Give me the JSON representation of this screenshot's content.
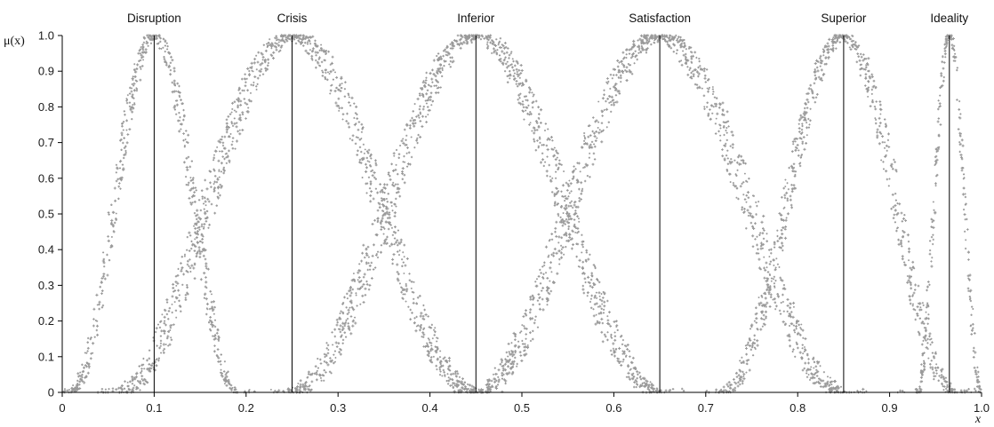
{
  "chart_data": {
    "type": "line",
    "title": "",
    "xlabel": "x",
    "ylabel": "μ(x)",
    "xlim": [
      0,
      1
    ],
    "ylim": [
      0,
      1
    ],
    "x_ticks": [
      "0",
      "0.1",
      "0.2",
      "0.3",
      "0.4",
      "0.5",
      "0.6",
      "0.7",
      "0.8",
      "0.9",
      "1.0"
    ],
    "y_ticks": [
      "0",
      "0.1",
      "0.2",
      "0.3",
      "0.4",
      "0.5",
      "0.6",
      "0.7",
      "0.8",
      "0.9",
      "1.0"
    ],
    "grid": false,
    "legend": "none",
    "marker_color": "#9a9a9a",
    "line_color": "#000000",
    "series": [
      {
        "name": "Disruption",
        "center": 0.1,
        "left_support": 0.01,
        "right_support": 0.19
      },
      {
        "name": "Crisis",
        "center": 0.25,
        "left_support": 0.06,
        "right_support": 0.45
      },
      {
        "name": "Inferior",
        "center": 0.45,
        "left_support": 0.25,
        "right_support": 0.65
      },
      {
        "name": "Satisfaction",
        "center": 0.65,
        "left_support": 0.45,
        "right_support": 0.85
      },
      {
        "name": "Superior",
        "center": 0.85,
        "left_support": 0.72,
        "right_support": 0.97
      },
      {
        "name": "Ideality",
        "center": 0.965,
        "left_support": 0.93,
        "right_support": 1.0
      }
    ]
  }
}
